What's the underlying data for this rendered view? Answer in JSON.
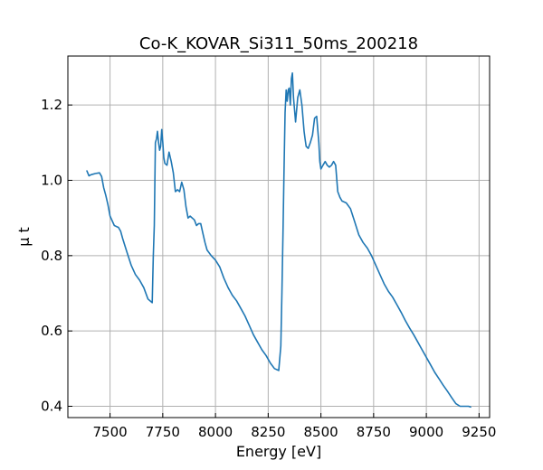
{
  "chart_data": {
    "type": "line",
    "title": "Co-K_KOVAR_Si311_50ms_200218",
    "xlabel": "Energy [eV]",
    "ylabel": "μ t",
    "xlim": [
      7300,
      9300
    ],
    "ylim": [
      0.37,
      1.33
    ],
    "xticks": [
      7500,
      7750,
      8000,
      8250,
      8500,
      8750,
      9000,
      9250
    ],
    "yticks": [
      0.4,
      0.6,
      0.8,
      1.0,
      1.2
    ],
    "ytick_labels": [
      "0.4",
      "0.6",
      "0.8",
      "1.0",
      "1.2"
    ],
    "grid": true,
    "line_color": "#1f77b4",
    "series": [
      {
        "x": [
          7390,
          7400,
          7410,
          7430,
          7450,
          7460,
          7470,
          7480,
          7490,
          7500,
          7520,
          7540,
          7550,
          7560,
          7580,
          7600,
          7620,
          7640,
          7660,
          7680,
          7700,
          7705,
          7710,
          7715,
          7720,
          7725,
          7730,
          7735,
          7740,
          7745,
          7750,
          7755,
          7760,
          7770,
          7780,
          7790,
          7800,
          7810,
          7820,
          7830,
          7840,
          7850,
          7860,
          7870,
          7880,
          7900,
          7910,
          7920,
          7930,
          7940,
          7950,
          7960,
          7980,
          8000,
          8020,
          8040,
          8060,
          8080,
          8100,
          8120,
          8140,
          8160,
          8180,
          8200,
          8220,
          8240,
          8260,
          8280,
          8300,
          8310,
          8315,
          8320,
          8325,
          8330,
          8335,
          8340,
          8345,
          8350,
          8355,
          8360,
          8365,
          8370,
          8380,
          8390,
          8400,
          8410,
          8420,
          8425,
          8430,
          8440,
          8450,
          8460,
          8470,
          8480,
          8490,
          8495,
          8500,
          8510,
          8520,
          8530,
          8540,
          8550,
          8560,
          8570,
          8580,
          8590,
          8600,
          8620,
          8640,
          8660,
          8680,
          8700,
          8720,
          8740,
          8760,
          8780,
          8800,
          8820,
          8840,
          8860,
          8880,
          8900,
          8920,
          8940,
          8960,
          8980,
          9000,
          9020,
          9040,
          9060,
          9080,
          9100,
          9120,
          9140,
          9160,
          9180,
          9200,
          9210
        ],
        "y": [
          1.025,
          1.012,
          1.015,
          1.018,
          1.02,
          1.01,
          0.98,
          0.96,
          0.935,
          0.905,
          0.88,
          0.875,
          0.865,
          0.845,
          0.81,
          0.775,
          0.75,
          0.735,
          0.715,
          0.685,
          0.675,
          0.8,
          0.88,
          1.1,
          1.11,
          1.13,
          1.1,
          1.08,
          1.09,
          1.135,
          1.1,
          1.06,
          1.045,
          1.04,
          1.075,
          1.05,
          1.02,
          0.97,
          0.975,
          0.97,
          0.995,
          0.975,
          0.93,
          0.9,
          0.905,
          0.895,
          0.88,
          0.885,
          0.885,
          0.86,
          0.835,
          0.815,
          0.8,
          0.788,
          0.77,
          0.74,
          0.715,
          0.695,
          0.68,
          0.66,
          0.64,
          0.615,
          0.59,
          0.57,
          0.55,
          0.535,
          0.515,
          0.5,
          0.495,
          0.56,
          0.7,
          0.86,
          1.02,
          1.18,
          1.24,
          1.21,
          1.24,
          1.245,
          1.2,
          1.27,
          1.285,
          1.22,
          1.155,
          1.22,
          1.24,
          1.2,
          1.13,
          1.11,
          1.09,
          1.085,
          1.1,
          1.12,
          1.165,
          1.17,
          1.1,
          1.05,
          1.03,
          1.04,
          1.05,
          1.04,
          1.035,
          1.04,
          1.05,
          1.04,
          0.97,
          0.955,
          0.945,
          0.94,
          0.925,
          0.89,
          0.855,
          0.835,
          0.82,
          0.8,
          0.775,
          0.75,
          0.725,
          0.705,
          0.69,
          0.67,
          0.65,
          0.628,
          0.608,
          0.59,
          0.57,
          0.55,
          0.53,
          0.51,
          0.49,
          0.473,
          0.456,
          0.44,
          0.423,
          0.407,
          0.4,
          0.4,
          0.4,
          0.398
        ]
      }
    ]
  }
}
